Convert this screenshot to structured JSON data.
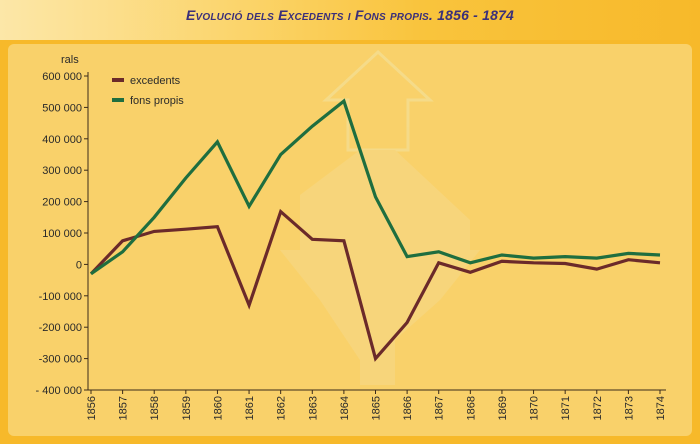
{
  "title": "Evolució dels Excedents i Fons propis. 1856 - 1874",
  "colors": {
    "background": "#f7b92a",
    "panel": "#f9d16a",
    "excedents": "#6b2a2a",
    "fons_propis": "#1f6e3f",
    "axis": "#3a2a1a",
    "title": "#3a2f7a"
  },
  "chart_data": {
    "type": "line",
    "ylabel": "rals",
    "xlabel": "",
    "ylim": [
      -400000,
      600000
    ],
    "yticks": [
      600000,
      500000,
      400000,
      300000,
      200000,
      100000,
      0,
      -100000,
      -200000,
      -300000,
      -400000
    ],
    "ytick_labels": [
      "600 000",
      "500 000",
      "400 000",
      "300 000",
      "200 000",
      "100 000",
      "0",
      "-100 000",
      "-200 000",
      "-300 000",
      "- 400 000"
    ],
    "x": [
      "1856",
      "1857",
      "1858",
      "1859",
      "1860",
      "1861",
      "1862",
      "1863",
      "1864",
      "1865",
      "1866",
      "1867",
      "1868",
      "1869",
      "1870",
      "1871",
      "1872",
      "1873",
      "1874"
    ],
    "legend_position": "top-left",
    "grid": false,
    "series": [
      {
        "name": "excedents",
        "color": "#6b2a2a",
        "values": [
          -30000,
          75000,
          105000,
          112000,
          120000,
          -130000,
          168000,
          80000,
          75000,
          -300000,
          -185000,
          5000,
          -25000,
          10000,
          5000,
          3000,
          -15000,
          15000,
          5000
        ]
      },
      {
        "name": "fons propis",
        "color": "#1f6e3f",
        "values": [
          -30000,
          40000,
          150000,
          275000,
          390000,
          185000,
          350000,
          440000,
          520000,
          215000,
          25000,
          40000,
          5000,
          30000,
          20000,
          25000,
          20000,
          35000,
          30000
        ]
      }
    ]
  }
}
